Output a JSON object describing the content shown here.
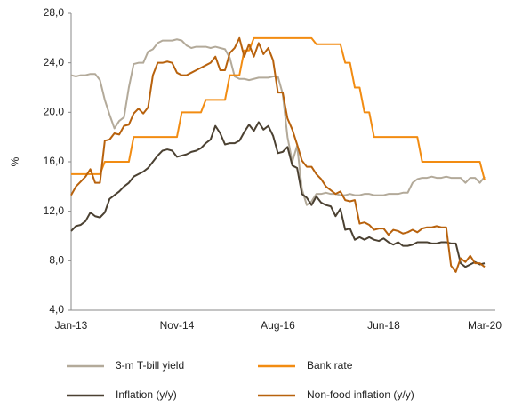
{
  "chart_data": {
    "type": "line",
    "y_label": "%",
    "categories": [
      "Jan-13",
      null,
      null,
      null,
      null,
      null,
      null,
      null,
      null,
      null,
      null,
      null,
      null,
      null,
      null,
      null,
      null,
      null,
      null,
      null,
      null,
      null,
      "Nov-14",
      null,
      null,
      null,
      null,
      null,
      null,
      null,
      null,
      null,
      null,
      null,
      null,
      null,
      null,
      null,
      null,
      null,
      null,
      null,
      null,
      "Aug-16",
      null,
      null,
      null,
      null,
      null,
      null,
      null,
      null,
      null,
      null,
      null,
      null,
      null,
      null,
      null,
      null,
      null,
      null,
      null,
      null,
      null,
      "Jun-18",
      null,
      null,
      null,
      null,
      null,
      null,
      null,
      null,
      null,
      null,
      null,
      null,
      null,
      null,
      null,
      null,
      null,
      null,
      null,
      null,
      "Mar-20"
    ],
    "ylim": [
      4,
      28
    ],
    "yticks": [
      {
        "value": 4,
        "label": "4,0"
      },
      {
        "value": 8,
        "label": "8,0"
      },
      {
        "value": 12,
        "label": "12,0"
      },
      {
        "value": 16,
        "label": "16,0"
      },
      {
        "value": 20,
        "label": "20,0"
      },
      {
        "value": 24,
        "label": "24,0"
      },
      {
        "value": 28,
        "label": "28,0"
      }
    ],
    "grid": false,
    "series": [
      {
        "name": "3-m T-bill yield",
        "color": "#b3aa9a",
        "values": [
          23,
          22.9,
          23,
          23,
          23.1,
          23.1,
          22.6,
          21,
          19.8,
          18.7,
          19.3,
          19.6,
          22,
          23.9,
          24,
          24,
          24.9,
          25.1,
          25.6,
          25.8,
          25.8,
          25.8,
          25.9,
          25.8,
          25.4,
          25.2,
          25.3,
          25.3,
          25.3,
          25.2,
          25.3,
          25.2,
          25.1,
          24.4,
          22.9,
          22.7,
          22.7,
          22.6,
          22.7,
          22.8,
          22.8,
          22.8,
          22.9,
          22.9,
          21.5,
          18,
          16,
          17.3,
          13.8,
          12.5,
          12.8,
          13.4,
          13.4,
          13.5,
          13.4,
          13.4,
          13.3,
          13.3,
          13.4,
          13.3,
          13.3,
          13.4,
          13.4,
          13.3,
          13.3,
          13.3,
          13.4,
          13.4,
          13.4,
          13.5,
          13.5,
          14.3,
          14.6,
          14.7,
          14.7,
          14.8,
          14.7,
          14.7,
          14.8,
          14.7,
          14.7,
          14.7,
          14.3,
          14.7,
          14.7,
          14.3,
          14.8
        ]
      },
      {
        "name": "Bank rate",
        "color": "#f28c12",
        "values": [
          15,
          15,
          15,
          15,
          15,
          15,
          15,
          16,
          16,
          16,
          16,
          16,
          16,
          18,
          18,
          18,
          18,
          18,
          18,
          18,
          18,
          18,
          18,
          20,
          20,
          20,
          20,
          20,
          21,
          21,
          21,
          21,
          21,
          23,
          23,
          23,
          25,
          25,
          26,
          26,
          26,
          26,
          26,
          26,
          26,
          26,
          26,
          26,
          26,
          26,
          26,
          25.5,
          25.5,
          25.5,
          25.5,
          25.5,
          25.5,
          24,
          24,
          22,
          22,
          20,
          20,
          18,
          18,
          18,
          18,
          18,
          18,
          18,
          18,
          18,
          18,
          16,
          16,
          16,
          16,
          16,
          16,
          16,
          16,
          16,
          16,
          16,
          16,
          16,
          14.5
        ]
      },
      {
        "name": "Inflation (y/y)",
        "color": "#4b4132",
        "values": [
          10.4,
          10.8,
          10.9,
          11.2,
          11.9,
          11.6,
          11.5,
          11.9,
          13,
          13.3,
          13.6,
          14,
          14.3,
          14.8,
          15,
          15.2,
          15.5,
          16,
          16.5,
          16.9,
          17,
          16.9,
          16.4,
          16.5,
          16.6,
          16.8,
          16.9,
          17.1,
          17.5,
          17.8,
          18.9,
          18.3,
          17.4,
          17.5,
          17.5,
          17.7,
          18.4,
          19,
          18.5,
          19.2,
          18.6,
          18.9,
          18.1,
          16.7,
          16.8,
          17.2,
          15.7,
          15.5,
          13.4,
          13.1,
          12.5,
          13.2,
          12.7,
          12.5,
          12.4,
          11.6,
          12.2,
          10.5,
          10.6,
          9.7,
          9.9,
          9.7,
          9.9,
          9.7,
          9.6,
          9.8,
          9.5,
          9.3,
          9.5,
          9.2,
          9.2,
          9.3,
          9.5,
          9.5,
          9.5,
          9.4,
          9.4,
          9.5,
          9.5,
          9.4,
          9.4,
          7.8,
          7.5,
          7.7,
          7.9,
          7.7,
          7.8
        ]
      },
      {
        "name": "Non-food inflation (y/y)",
        "color": "#b8620d",
        "values": [
          13.3,
          14,
          14.4,
          14.8,
          15.4,
          14.3,
          14.3,
          17.7,
          17.8,
          18.3,
          18.2,
          18.9,
          19,
          19.9,
          20.3,
          19.9,
          20.4,
          23,
          24,
          24,
          24.1,
          24,
          23.2,
          23,
          23,
          23.2,
          23.4,
          23.6,
          23.8,
          24,
          24.5,
          23.4,
          23.4,
          24.8,
          25.2,
          26,
          24.5,
          25.5,
          24.5,
          25.6,
          24.7,
          25.2,
          24.2,
          21.6,
          21.6,
          19.5,
          18.6,
          17.4,
          16.1,
          15.6,
          15.6,
          15,
          14.6,
          14,
          13.7,
          13.4,
          13.6,
          12.9,
          12.8,
          12.9,
          11,
          11.1,
          10.9,
          10.5,
          10.6,
          10.6,
          10.1,
          10.5,
          10.4,
          10.2,
          10.3,
          10.5,
          10.3,
          10.6,
          10.7,
          10.7,
          10.8,
          10.7,
          10.7,
          7.6,
          7.1,
          8.2,
          7.9,
          8.4,
          7.8,
          7.8,
          7.5
        ]
      }
    ]
  }
}
